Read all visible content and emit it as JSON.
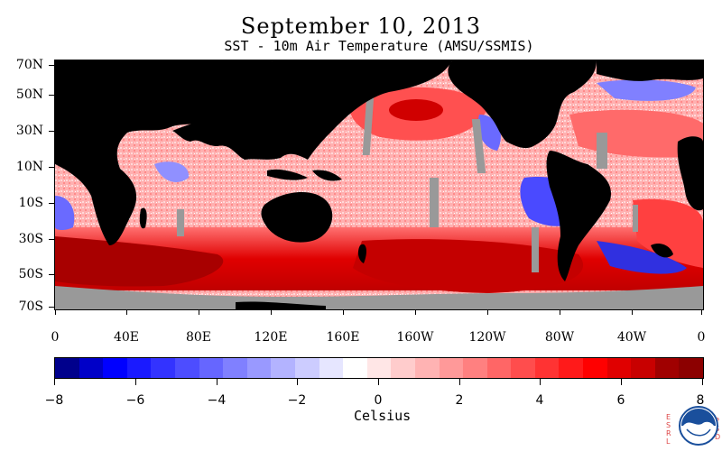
{
  "header": {
    "title": "September 10, 2013",
    "subtitle": "SST - 10m Air Temperature (AMSU/SSMIS)"
  },
  "map": {
    "lat_labels": [
      "70N",
      "50N",
      "30N",
      "10N",
      "10S",
      "30S",
      "50S",
      "70S"
    ],
    "lon_labels": [
      "0",
      "40E",
      "80E",
      "120E",
      "160E",
      "160W",
      "120W",
      "80W",
      "40W",
      "0"
    ],
    "land_color": "#000000",
    "missing_color": "#999999"
  },
  "colorbar": {
    "ticks": [
      "−8",
      "−6",
      "−4",
      "−2",
      "0",
      "2",
      "4",
      "6",
      "8"
    ],
    "units": "Celsius",
    "colors": [
      "#00008c",
      "#0000c8",
      "#0000ff",
      "#1a1aff",
      "#3333ff",
      "#4d4dff",
      "#6666ff",
      "#8080ff",
      "#9999ff",
      "#b3b3ff",
      "#ccccff",
      "#e6e6ff",
      "#ffffff",
      "#ffe6e6",
      "#ffcccc",
      "#ffb3b3",
      "#ff9999",
      "#ff8080",
      "#ff6666",
      "#ff4d4d",
      "#ff3333",
      "#ff1a1a",
      "#ff0000",
      "#e00000",
      "#c80000",
      "#a00000",
      "#8c0000"
    ]
  },
  "branding": {
    "left_text": "ESRL",
    "right_text": "PSD",
    "logo": "noaa-logo"
  }
}
